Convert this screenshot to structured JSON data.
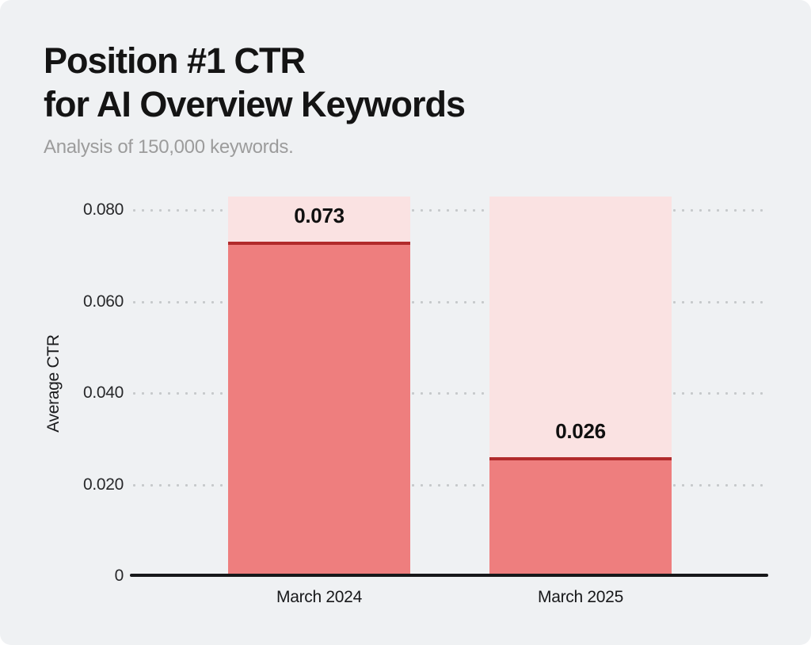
{
  "header": {
    "title_line1": "Position #1 CTR",
    "title_line2": "for AI Overview Keywords",
    "subtitle": "Analysis of 150,000 keywords."
  },
  "chart_data": {
    "type": "bar",
    "title": "Position #1 CTR for AI Overview Keywords",
    "subtitle": "Analysis of 150,000 keywords.",
    "categories": [
      "March 2024",
      "March 2025"
    ],
    "values": [
      0.073,
      0.026
    ],
    "value_labels": [
      "0.073",
      "0.026"
    ],
    "xlabel": "",
    "ylabel": "Average CTR",
    "ylim": [
      0,
      0.083
    ],
    "yticks": [
      {
        "value": 0,
        "label": "0"
      },
      {
        "value": 0.02,
        "label": "0.020"
      },
      {
        "value": 0.04,
        "label": "0.040"
      },
      {
        "value": 0.06,
        "label": "0.060"
      },
      {
        "value": 0.08,
        "label": "0.080"
      }
    ],
    "grid": "horizontal-dotted",
    "legend": "none",
    "colors": {
      "background": "#eff1f3",
      "bar_fill": "#ee7e7e",
      "bar_track": "#fae2e2",
      "bar_topline": "#b12a2b",
      "axis": "#17181a",
      "grid_dots": "#c6c9cb",
      "title_text": "#141414",
      "subtitle_text": "#9c9c9c",
      "value_text": "#101010"
    }
  }
}
